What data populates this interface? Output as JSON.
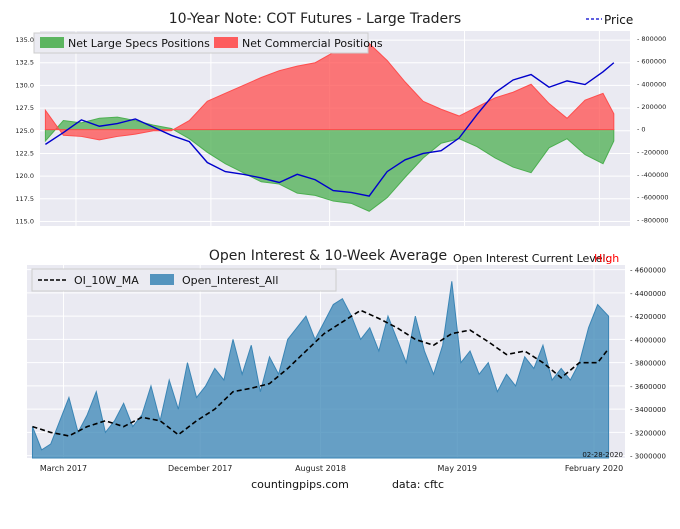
{
  "chart_data": [
    {
      "type": "area",
      "title": "10-Year Note: COT Futures - Large Traders",
      "legend": [
        {
          "label": "Net Large Specs Positions",
          "color": "#4caf50"
        },
        {
          "label": "Net Commercial Positions",
          "color": "#ff4d4d"
        }
      ],
      "price_legend": {
        "label": "Price",
        "color": "#0000cc"
      },
      "legend_placement": "top-left",
      "grid": true,
      "left_axis": {
        "ylim": [
          114.5,
          136.0
        ],
        "ticks": [
          "115.0",
          "117.5",
          "120.0",
          "122.5",
          "125.0",
          "127.5",
          "130.0",
          "132.5",
          "135.0"
        ]
      },
      "right_axis": {
        "ylim": [
          -850000,
          870000
        ],
        "ticks": [
          "-800000",
          "-600000",
          "-400000",
          "-200000",
          "0",
          "200000",
          "400000",
          "600000",
          "800000"
        ]
      },
      "x_range": [
        2016.97,
        2020.25
      ],
      "series": [
        {
          "name": "Net Large Specs Positions",
          "x": [
            2017.0,
            2017.1,
            2017.2,
            2017.3,
            2017.4,
            2017.5,
            2017.6,
            2017.7,
            2017.8,
            2017.9,
            2018.0,
            2018.1,
            2018.2,
            2018.3,
            2018.4,
            2018.5,
            2018.6,
            2018.7,
            2018.8,
            2018.9,
            2019.0,
            2019.1,
            2019.2,
            2019.3,
            2019.4,
            2019.5,
            2019.6,
            2019.7,
            2019.8,
            2019.9,
            2020.0,
            2020.1,
            2020.16
          ],
          "values": [
            -100000,
            80000,
            60000,
            100000,
            110000,
            80000,
            40000,
            10000,
            -80000,
            -200000,
            -300000,
            -380000,
            -460000,
            -480000,
            -560000,
            -580000,
            -630000,
            -650000,
            -720000,
            -600000,
            -420000,
            -250000,
            -120000,
            -80000,
            -150000,
            -250000,
            -330000,
            -380000,
            -160000,
            -80000,
            -220000,
            -300000,
            -100000
          ]
        },
        {
          "name": "Net Commercial Positions",
          "x": [
            2017.0,
            2017.1,
            2017.2,
            2017.3,
            2017.4,
            2017.5,
            2017.6,
            2017.7,
            2017.8,
            2017.9,
            2018.0,
            2018.1,
            2018.2,
            2018.3,
            2018.4,
            2018.5,
            2018.6,
            2018.7,
            2018.8,
            2018.9,
            2019.0,
            2019.1,
            2019.2,
            2019.3,
            2019.4,
            2019.5,
            2019.6,
            2019.7,
            2019.8,
            2019.9,
            2020.0,
            2020.1,
            2020.16
          ],
          "values": [
            170000,
            -50000,
            -60000,
            -90000,
            -60000,
            -40000,
            -10000,
            -10000,
            80000,
            250000,
            320000,
            390000,
            460000,
            520000,
            560000,
            590000,
            680000,
            720000,
            760000,
            610000,
            420000,
            250000,
            180000,
            120000,
            200000,
            280000,
            330000,
            400000,
            230000,
            100000,
            260000,
            320000,
            140000
          ]
        },
        {
          "name": "Price",
          "x": [
            2017.0,
            2017.1,
            2017.2,
            2017.3,
            2017.4,
            2017.5,
            2017.6,
            2017.7,
            2017.8,
            2017.9,
            2018.0,
            2018.1,
            2018.2,
            2018.3,
            2018.4,
            2018.5,
            2018.6,
            2018.7,
            2018.8,
            2018.9,
            2019.0,
            2019.1,
            2019.2,
            2019.3,
            2019.4,
            2019.5,
            2019.6,
            2019.7,
            2019.8,
            2019.9,
            2020.0,
            2020.1,
            2020.16
          ],
          "values": [
            123.5,
            124.8,
            126.2,
            125.5,
            125.8,
            126.3,
            125.4,
            124.5,
            123.8,
            121.5,
            120.5,
            120.2,
            119.8,
            119.3,
            120.2,
            119.6,
            118.4,
            118.2,
            117.8,
            120.5,
            121.8,
            122.5,
            122.8,
            124.2,
            126.8,
            129.2,
            130.6,
            131.2,
            129.8,
            130.5,
            130.1,
            131.5,
            132.5
          ]
        }
      ]
    },
    {
      "type": "area",
      "title": "Open Interest & 10-Week Average",
      "status_label": "Open Interest Current Level:",
      "status_value": "High",
      "status_color": "#ff0000",
      "legend": [
        {
          "label": "OI_10W_MA",
          "style": "dashed",
          "color": "#000000"
        },
        {
          "label": "Open_Interest_All",
          "color": "#3a85b5"
        }
      ],
      "legend_placement": "top-left",
      "grid": true,
      "right_axis": {
        "ylim": [
          2980000,
          4640000
        ],
        "ticks": [
          "3000000",
          "3200000",
          "3400000",
          "3600000",
          "3800000",
          "4000000",
          "4200000",
          "4400000",
          "4600000"
        ]
      },
      "x_range": [
        2016.97,
        2020.25
      ],
      "x_ticks": [
        {
          "x": 2017.17,
          "label": "March 2017"
        },
        {
          "x": 2017.92,
          "label": "December 2017"
        },
        {
          "x": 2018.58,
          "label": "August 2018"
        },
        {
          "x": 2019.33,
          "label": "May 2019"
        },
        {
          "x": 2020.08,
          "label": "February 2020"
        }
      ],
      "annotation": "02-28-2020",
      "series": [
        {
          "name": "Open_Interest_All",
          "x": [
            2017.0,
            2017.05,
            2017.1,
            2017.15,
            2017.2,
            2017.25,
            2017.3,
            2017.35,
            2017.4,
            2017.45,
            2017.5,
            2017.55,
            2017.6,
            2017.65,
            2017.7,
            2017.75,
            2017.8,
            2017.85,
            2017.9,
            2017.95,
            2018.0,
            2018.05,
            2018.1,
            2018.15,
            2018.2,
            2018.25,
            2018.3,
            2018.35,
            2018.4,
            2018.45,
            2018.5,
            2018.55,
            2018.6,
            2018.65,
            2018.7,
            2018.75,
            2018.8,
            2018.85,
            2018.9,
            2018.95,
            2019.0,
            2019.05,
            2019.1,
            2019.15,
            2019.2,
            2019.25,
            2019.3,
            2019.35,
            2019.4,
            2019.45,
            2019.5,
            2019.55,
            2019.6,
            2019.65,
            2019.7,
            2019.75,
            2019.8,
            2019.85,
            2019.9,
            2019.95,
            2020.0,
            2020.05,
            2020.1,
            2020.16
          ],
          "values": [
            3250000,
            3050000,
            3100000,
            3300000,
            3500000,
            3200000,
            3350000,
            3550000,
            3200000,
            3300000,
            3450000,
            3250000,
            3350000,
            3600000,
            3300000,
            3650000,
            3400000,
            3800000,
            3500000,
            3600000,
            3750000,
            3650000,
            4000000,
            3700000,
            3950000,
            3550000,
            3850000,
            3700000,
            4000000,
            4100000,
            4200000,
            4000000,
            4150000,
            4300000,
            4350000,
            4200000,
            4000000,
            4100000,
            3900000,
            4200000,
            4000000,
            3800000,
            4200000,
            3900000,
            3700000,
            3950000,
            4500000,
            3800000,
            3900000,
            3700000,
            3800000,
            3550000,
            3700000,
            3600000,
            3850000,
            3750000,
            3950000,
            3650000,
            3750000,
            3650000,
            3800000,
            4100000,
            4300000,
            4200000
          ]
        },
        {
          "name": "OI_10W_MA",
          "x": [
            2017.0,
            2017.1,
            2017.2,
            2017.3,
            2017.4,
            2017.5,
            2017.6,
            2017.7,
            2017.8,
            2017.9,
            2018.0,
            2018.1,
            2018.2,
            2018.3,
            2018.4,
            2018.5,
            2018.6,
            2018.7,
            2018.8,
            2018.9,
            2019.0,
            2019.1,
            2019.2,
            2019.3,
            2019.4,
            2019.5,
            2019.6,
            2019.7,
            2019.8,
            2019.9,
            2020.0,
            2020.1,
            2020.16
          ],
          "values": [
            3250000,
            3200000,
            3170000,
            3250000,
            3300000,
            3250000,
            3330000,
            3300000,
            3180000,
            3300000,
            3400000,
            3550000,
            3580000,
            3620000,
            3750000,
            3900000,
            4050000,
            4150000,
            4250000,
            4180000,
            4100000,
            4000000,
            3950000,
            4050000,
            4080000,
            3980000,
            3870000,
            3900000,
            3800000,
            3670000,
            3800000,
            3800000,
            3920000
          ]
        }
      ]
    }
  ],
  "footer": {
    "left": "countingpips.com",
    "right": "data: cftc"
  }
}
